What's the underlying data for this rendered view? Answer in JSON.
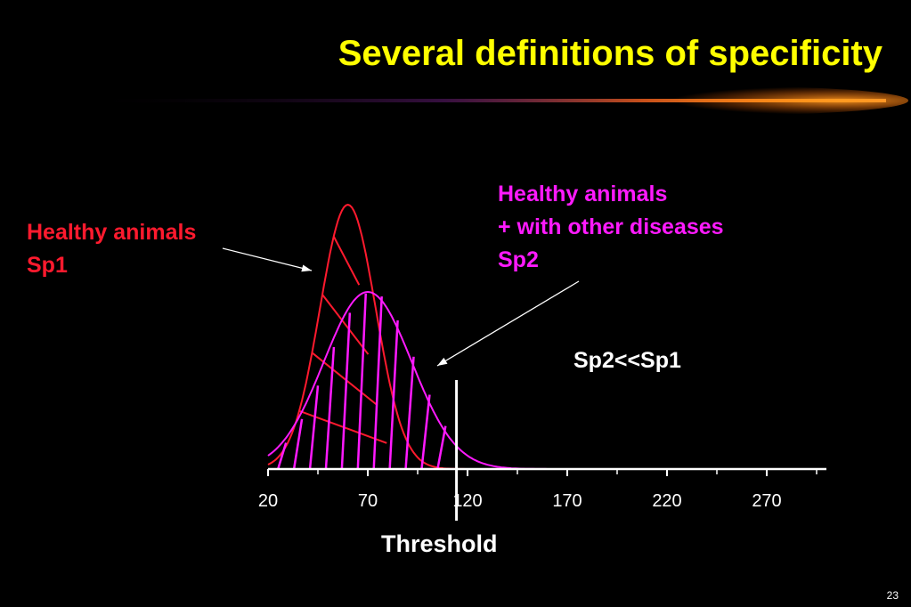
{
  "slide": {
    "title": "Several definitions of specificity",
    "page_number": "23"
  },
  "labels": {
    "healthy": [
      "Healthy animals",
      "Sp1"
    ],
    "other": [
      "Healthy animals",
      "+ with other diseases",
      "Sp2"
    ],
    "comparison": "Sp2<<Sp1",
    "threshold": "Threshold"
  },
  "colors": {
    "title": "#ffff00",
    "sp1": "#ff1a2e",
    "sp2": "#ff1aff",
    "axis": "#ffffff",
    "background": "#000000"
  },
  "chart_data": {
    "type": "area",
    "x_ticks": [
      "20",
      "70",
      "120",
      "170",
      "220",
      "270"
    ],
    "xlim": [
      20,
      300
    ],
    "threshold_x": 110,
    "series": [
      {
        "name": "Sp1",
        "mean": 60,
        "sd": 14,
        "peak": 1.0,
        "hatched_below_threshold": true
      },
      {
        "name": "Sp2",
        "mean": 70,
        "sd": 22,
        "peak": 0.67,
        "hatched_below_threshold": true
      }
    ]
  }
}
